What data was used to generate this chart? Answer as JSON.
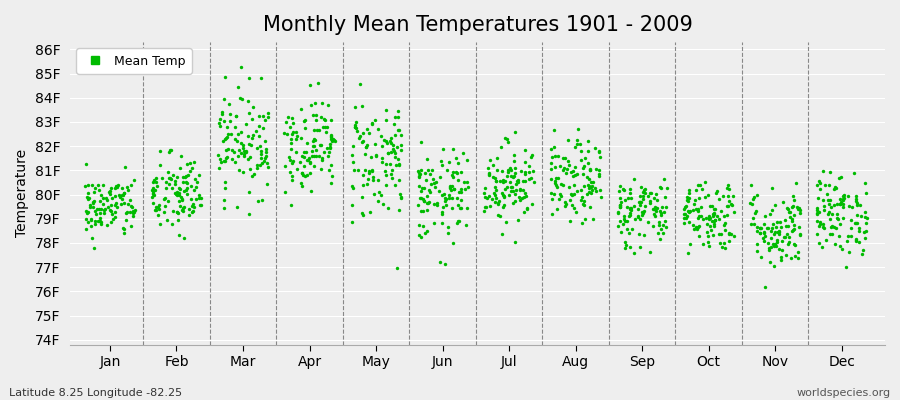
{
  "title": "Monthly Mean Temperatures 1901 - 2009",
  "ylabel": "Temperature",
  "xlabel_labels": [
    "Jan",
    "Feb",
    "Mar",
    "Apr",
    "May",
    "Jun",
    "Jul",
    "Aug",
    "Sep",
    "Oct",
    "Nov",
    "Dec"
  ],
  "ytick_labels": [
    "74F",
    "75F",
    "76F",
    "77F",
    "78F",
    "79F",
    "80F",
    "81F",
    "82F",
    "83F",
    "84F",
    "85F",
    "86F"
  ],
  "ytick_values": [
    74,
    75,
    76,
    77,
    78,
    79,
    80,
    81,
    82,
    83,
    84,
    85,
    86
  ],
  "ylim": [
    73.8,
    86.3
  ],
  "dot_color": "#00bb00",
  "legend_label": "Mean Temp",
  "subtitle_left": "Latitude 8.25 Longitude -82.25",
  "subtitle_right": "worldspecies.org",
  "background_color": "#eeeeee",
  "plot_background": "#eeeeee",
  "dot_size": 6,
  "title_fontsize": 15,
  "axis_fontsize": 10,
  "legend_fontsize": 9,
  "monthly_means": [
    79.5,
    80.0,
    82.2,
    82.1,
    81.5,
    79.9,
    80.5,
    80.5,
    79.3,
    79.2,
    78.6,
    79.2
  ],
  "monthly_stds": [
    0.65,
    0.85,
    1.1,
    0.95,
    1.3,
    0.95,
    0.85,
    0.85,
    0.75,
    0.75,
    0.85,
    0.85
  ],
  "n_years": 109,
  "seed": 42,
  "vline_color": "#888888",
  "grid_color": "#ffffff",
  "spine_color": "#aaaaaa"
}
